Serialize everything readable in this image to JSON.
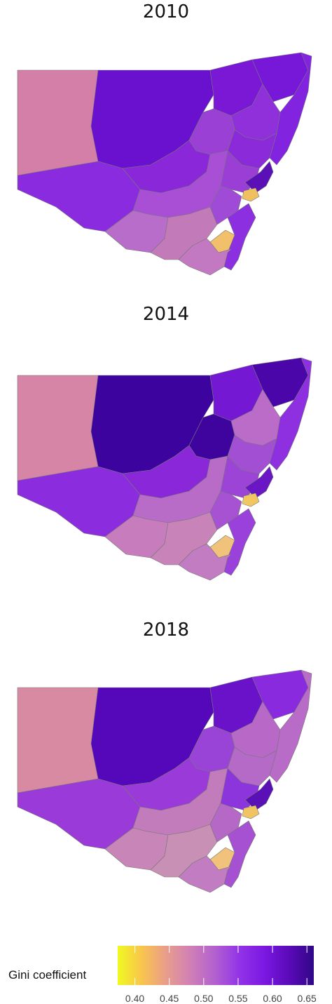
{
  "panels": [
    {
      "title": "2010",
      "fills": {
        "west": "#d47fa8",
        "north": "#6a11cf",
        "east_top": "#7a18d6",
        "northeast": "#7718d9",
        "coast_n": "#8224df",
        "mid_north": "#8f30da",
        "ctr": "#9a40d4",
        "ctr2": "#8a2ad8",
        "mid_west": "#8a28d9",
        "south_w": "#8b2be0",
        "riverina": "#a84fd6",
        "s_tab": "#b76dc9",
        "s_ctr": "#c27ab9",
        "s_east": "#a04bd8",
        "syd_ring": "#9a3ed5",
        "syd": "#5b0fb6",
        "syd_y": "#f0c060",
        "canberra": "#f2c06a",
        "coast_s": "#8c2fe0",
        "snowy": "#c279c1"
      }
    },
    {
      "title": "2014",
      "fills": {
        "west": "#d785a7",
        "north": "#3d039e",
        "east_top": "#7418d3",
        "northeast": "#4a06a9",
        "coast_n": "#8e2fe0",
        "mid_north": "#bb6cc9",
        "ctr": "#3e049d",
        "ctr2": "#a24fd4",
        "mid_west": "#8a27d9",
        "south_w": "#8c2cdf",
        "riverina": "#b86cc7",
        "s_tab": "#c67cbd",
        "s_ctr": "#c884b8",
        "s_east": "#a752d3",
        "syd_ring": "#9c44d6",
        "syd": "#6a16c5",
        "syd_y": "#f2c760",
        "canberra": "#f1c27a",
        "coast_s": "#9a41dc",
        "snowy": "#c27cc1"
      }
    },
    {
      "title": "2018",
      "fills": {
        "west": "#d98aa3",
        "north": "#5508ba",
        "east_top": "#6a12c9",
        "northeast": "#8a2ade",
        "coast_n": "#b86bc7",
        "mid_north": "#b868c7",
        "ctr": "#9a44d7",
        "ctr2": "#b46ac6",
        "mid_west": "#9a3ad8",
        "south_w": "#9a3ad8",
        "riverina": "#c27bbb",
        "s_tab": "#c785b8",
        "s_ctr": "#c890b4",
        "s_east": "#b568c6",
        "syd_ring": "#8d35dd",
        "syd": "#5b0fb6",
        "syd_y": "#f0c462",
        "canberra": "#f1c27c",
        "coast_s": "#a650d2",
        "snowy": "#c27cc1"
      }
    }
  ],
  "legend": {
    "title": "Gini coefficient",
    "ticks": [
      "0.40",
      "0.45",
      "0.50",
      "0.55",
      "0.60",
      "0.65"
    ],
    "tick_values": [
      0.4,
      0.45,
      0.5,
      0.55,
      0.6,
      0.65
    ],
    "range": [
      0.375,
      0.66
    ],
    "colors": [
      "#f0f921",
      "#f9c44d",
      "#e89c8d",
      "#cf7fb6",
      "#b15fd0",
      "#9132e8",
      "#7a17e1",
      "#5a0ab8",
      "#2f0787"
    ]
  }
}
